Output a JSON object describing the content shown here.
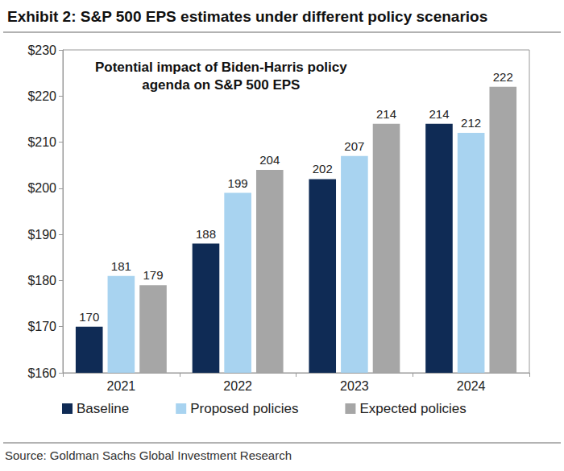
{
  "chart_data": {
    "type": "bar",
    "title": "Exhibit 2: S&P 500 EPS estimates under different policy scenarios",
    "annotations": [
      "Potential impact of Biden-Harris policy\nagenda on S&P 500 EPS"
    ],
    "source": "Source: Goldman Sachs Global Investment Research",
    "categories": [
      "2021",
      "2022",
      "2023",
      "2024"
    ],
    "series": [
      {
        "name": "Baseline",
        "color": "#0f2b55",
        "values": [
          170,
          188,
          202,
          214
        ]
      },
      {
        "name": "Proposed policies",
        "color": "#a8d3f0",
        "values": [
          181,
          199,
          207,
          212
        ]
      },
      {
        "name": "Expected policies",
        "color": "#a6a6a6",
        "values": [
          179,
          204,
          214,
          222
        ]
      }
    ],
    "ylim": [
      160,
      230
    ],
    "yticks": [
      {
        "value": 160,
        "label": "$160"
      },
      {
        "value": 170,
        "label": "$170"
      },
      {
        "value": 180,
        "label": "$180"
      },
      {
        "value": 190,
        "label": "$190"
      },
      {
        "value": 200,
        "label": "$200"
      },
      {
        "value": 210,
        "label": "$210"
      },
      {
        "value": 220,
        "label": "$220"
      },
      {
        "value": 230,
        "label": "$230"
      }
    ],
    "grid": false,
    "legend": "bottom",
    "data_labels": true
  }
}
